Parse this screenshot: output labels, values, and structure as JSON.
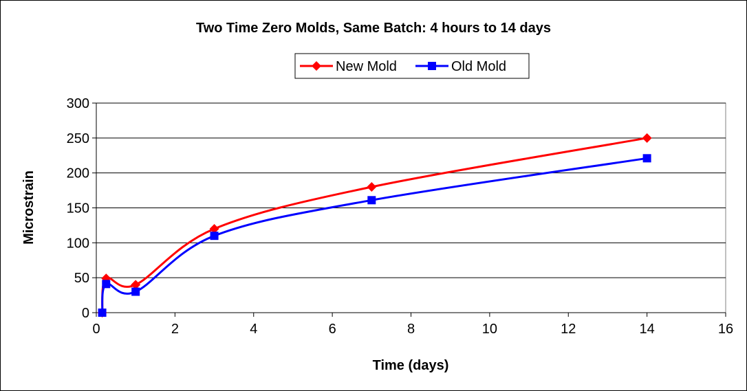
{
  "chart_data": {
    "type": "line",
    "title": "Two Time Zero Molds, Same Batch: 4 hours to 14 days",
    "xlabel": "Time (days)",
    "ylabel": "Microstrain",
    "xlim": [
      0,
      16
    ],
    "ylim": [
      0,
      300
    ],
    "xticks": [
      "0",
      "2",
      "4",
      "6",
      "8",
      "10",
      "12",
      "14",
      "16"
    ],
    "yticks": [
      "0",
      "50",
      "100",
      "150",
      "200",
      "250",
      "300"
    ],
    "grid": "horizontal",
    "smoothed": true,
    "legend_position": "top-center",
    "series": [
      {
        "name": "New Mold",
        "color": "#ff0000",
        "marker": "diamond",
        "x": [
          0.15,
          0.25,
          1,
          3,
          7,
          14
        ],
        "y": [
          0,
          49,
          40,
          120,
          180,
          250
        ]
      },
      {
        "name": "Old Mold",
        "color": "#0000ff",
        "marker": "square",
        "x": [
          0.15,
          0.25,
          1,
          3,
          7,
          14
        ],
        "y": [
          0,
          41,
          30,
          110,
          161,
          221
        ]
      }
    ]
  }
}
